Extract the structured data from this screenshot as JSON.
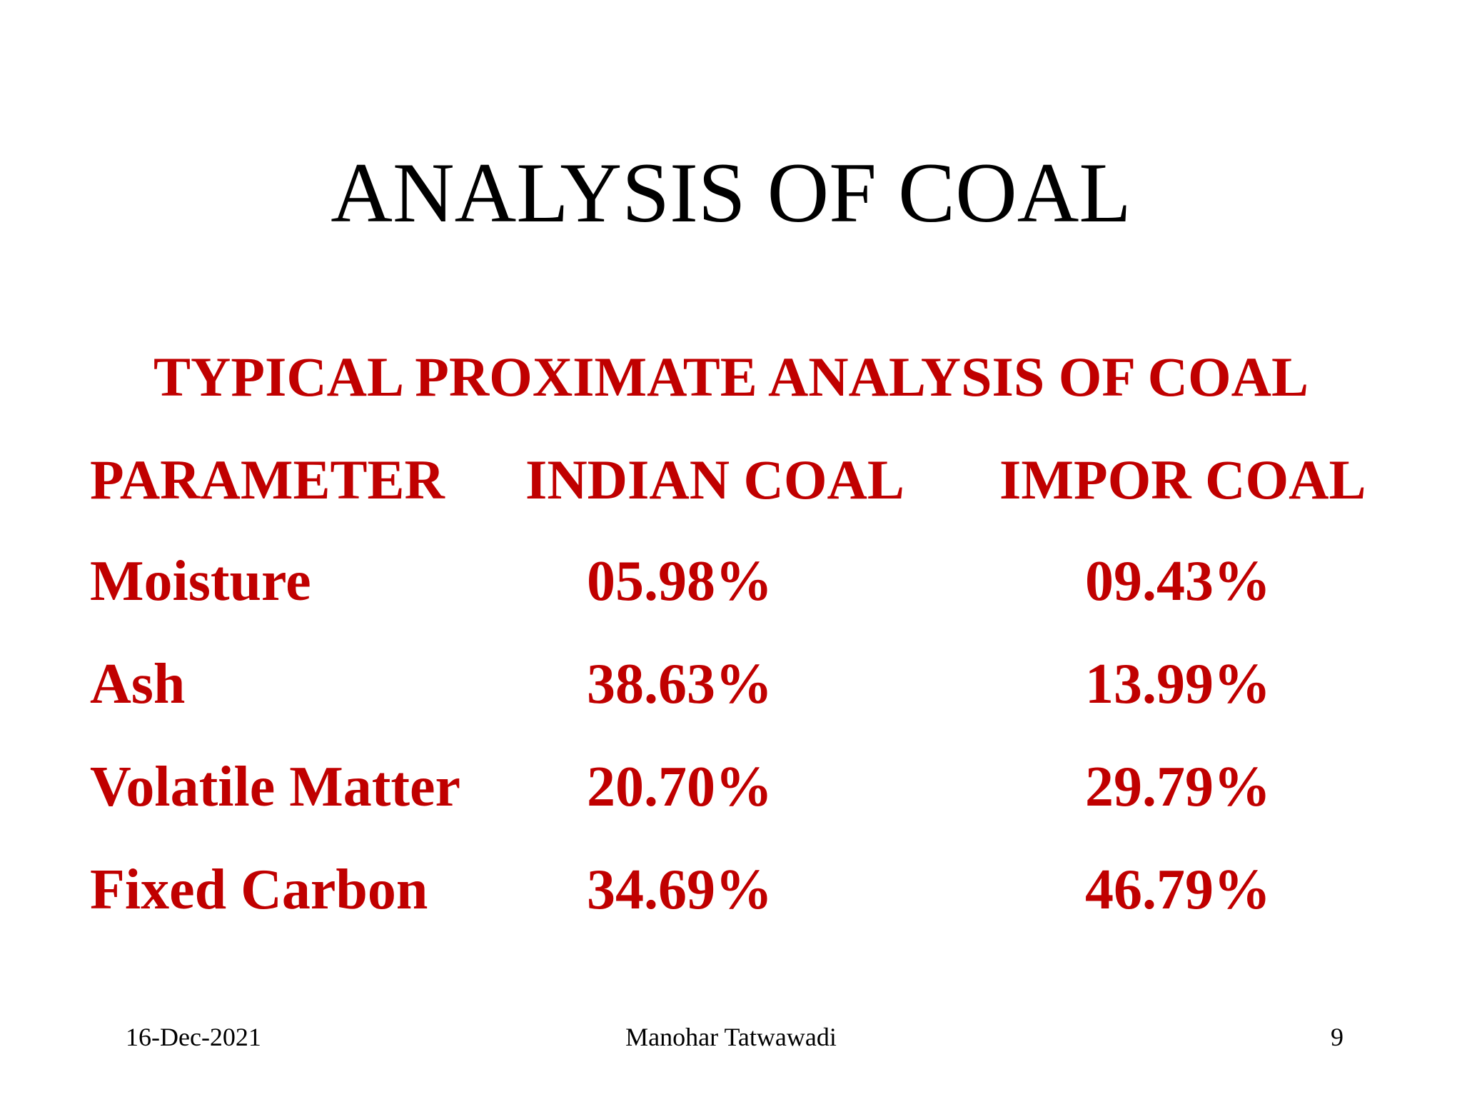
{
  "slide": {
    "title": "ANALYSIS OF COAL",
    "subtitle": "TYPICAL PROXIMATE ANALYSIS OF COAL",
    "colors": {
      "title": "#000000",
      "table_text": "#c00000",
      "background": "#ffffff"
    },
    "table": {
      "headers": [
        "PARAMETER",
        "INDIAN COAL",
        "IMPOR COAL"
      ],
      "rows": [
        {
          "parameter": "Moisture",
          "indian": "05.98%",
          "imported": "09.43%"
        },
        {
          "parameter": "Ash",
          "indian": "38.63%",
          "imported": "13.99%"
        },
        {
          "parameter": "Volatile Matter",
          "indian": "20.70%",
          "imported": "29.79%"
        },
        {
          "parameter": "Fixed Carbon",
          "indian": "34.69%",
          "imported": "46.79%"
        }
      ]
    },
    "footer": {
      "date": "16-Dec-2021",
      "author": "Manohar Tatwawadi",
      "page_number": "9"
    }
  }
}
